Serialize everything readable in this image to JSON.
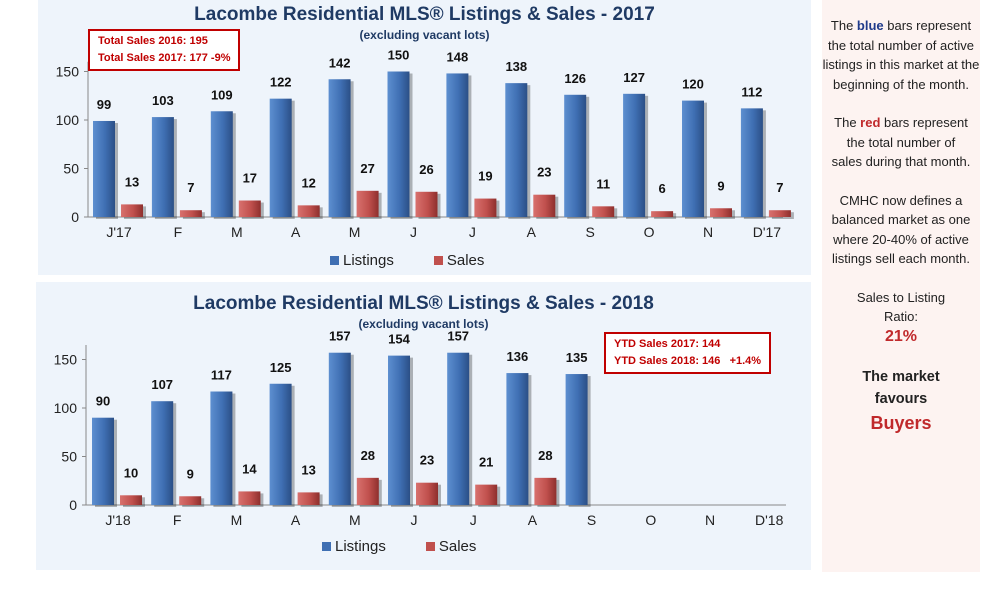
{
  "colors": {
    "listings": "#3f6fb3",
    "sales": "#c0504d",
    "panel_bg": "#eef4fb",
    "sidebar_bg": "#fdf3f1",
    "accent_red": "#c00000"
  },
  "chart_data": [
    {
      "type": "bar",
      "title": "Lacombe Residential MLS® Listings & Sales - 2017",
      "subtitle": "(excluding vacant lots)",
      "categories": [
        "J'17",
        "F",
        "M",
        "A",
        "M",
        "J",
        "J",
        "A",
        "S",
        "O",
        "N",
        "D'17"
      ],
      "series": [
        {
          "name": "Listings",
          "values": [
            99,
            103,
            109,
            122,
            142,
            150,
            148,
            138,
            126,
            127,
            120,
            112
          ]
        },
        {
          "name": "Sales",
          "values": [
            13,
            7,
            17,
            12,
            27,
            26,
            19,
            23,
            11,
            6,
            9,
            7
          ]
        }
      ],
      "yticks": [
        0,
        50,
        100,
        150
      ],
      "ylim": [
        0,
        160
      ],
      "annotation": [
        "Total Sales 2016: 195",
        "Total Sales 2017: 177 -9%"
      ],
      "legend": "bottom"
    },
    {
      "type": "bar",
      "title": "Lacombe Residential MLS® Listings & Sales - 2018",
      "subtitle": "(excluding vacant lots)",
      "categories": [
        "J'18",
        "F",
        "M",
        "A",
        "M",
        "J",
        "J",
        "A",
        "S",
        "O",
        "N",
        "D'18"
      ],
      "series": [
        {
          "name": "Listings",
          "values": [
            90,
            107,
            117,
            125,
            157,
            154,
            157,
            136,
            135,
            null,
            null,
            null
          ]
        },
        {
          "name": "Sales",
          "values": [
            10,
            9,
            14,
            13,
            28,
            23,
            21,
            28,
            null,
            null,
            null,
            null
          ]
        }
      ],
      "yticks": [
        0,
        50,
        100,
        150
      ],
      "ylim": [
        0,
        165
      ],
      "annotation": [
        "YTD Sales 2017: 144",
        "YTD Sales 2018: 146   +1.4%"
      ],
      "legend": "bottom"
    }
  ],
  "sidebar": {
    "p1_pre": "The ",
    "p1_blue": "blue",
    "p1_post": " bars represent the total number of active listings in this market at the beginning of the month.",
    "p2_pre": "The ",
    "p2_red": "red",
    "p2_post": " bars represent the total number of sales during that month.",
    "p3": "CMHC now defines a balanced market as one where 20-40% of active listings sell each month.",
    "p4": "Sales to Listing Ratio:",
    "ratio": "21%",
    "favours": "The market favours",
    "buyers": "Buyers"
  }
}
